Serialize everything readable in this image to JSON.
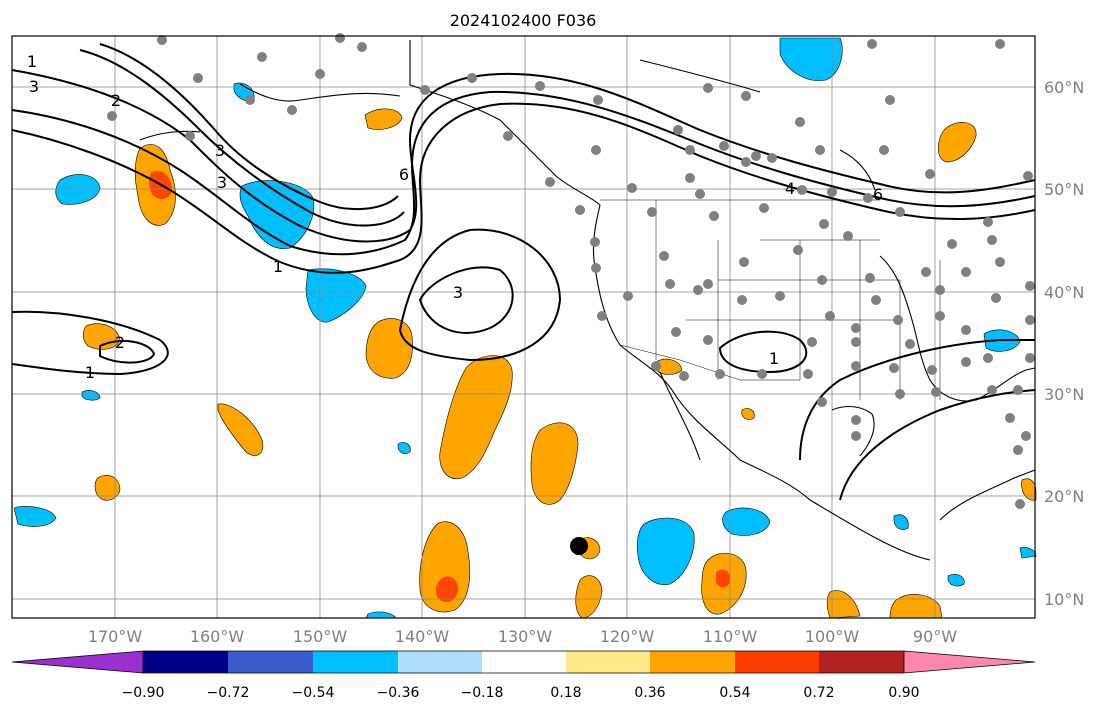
{
  "title": "2024102400 F036",
  "lat_labels": [
    "60°N",
    "50°N",
    "40°N",
    "30°N",
    "20°N",
    "10°N"
  ],
  "lon_labels": [
    "170°W",
    "160°W",
    "150°W",
    "140°W",
    "130°W",
    "120°W",
    "110°W",
    "100°W",
    "90°W"
  ],
  "contour_labels": [
    "1",
    "3",
    "2",
    "3",
    "3",
    "6",
    "1",
    "3",
    "2",
    "1",
    "4",
    "6",
    "1"
  ],
  "colorbar": {
    "colors": [
      "#9b30d0",
      "#00008b",
      "#3a5bcc",
      "#00bfff",
      "#acdffa",
      "#ffffff",
      "#ffe98a",
      "#ffa500",
      "#ff3c00",
      "#b22222",
      "#ff88aa"
    ],
    "ticks": [
      "−0.90",
      "−0.72",
      "−0.54",
      "−0.36",
      "−0.18",
      "0.18",
      "0.36",
      "0.54",
      "0.72",
      "0.90"
    ]
  },
  "fill_colors": {
    "orange": "#ffa500",
    "red_orange": "#ff4500",
    "cyan": "#00bfff",
    "light_blue": "#acdffa",
    "yellow": "#ffe98a"
  },
  "station_color": "#808080"
}
